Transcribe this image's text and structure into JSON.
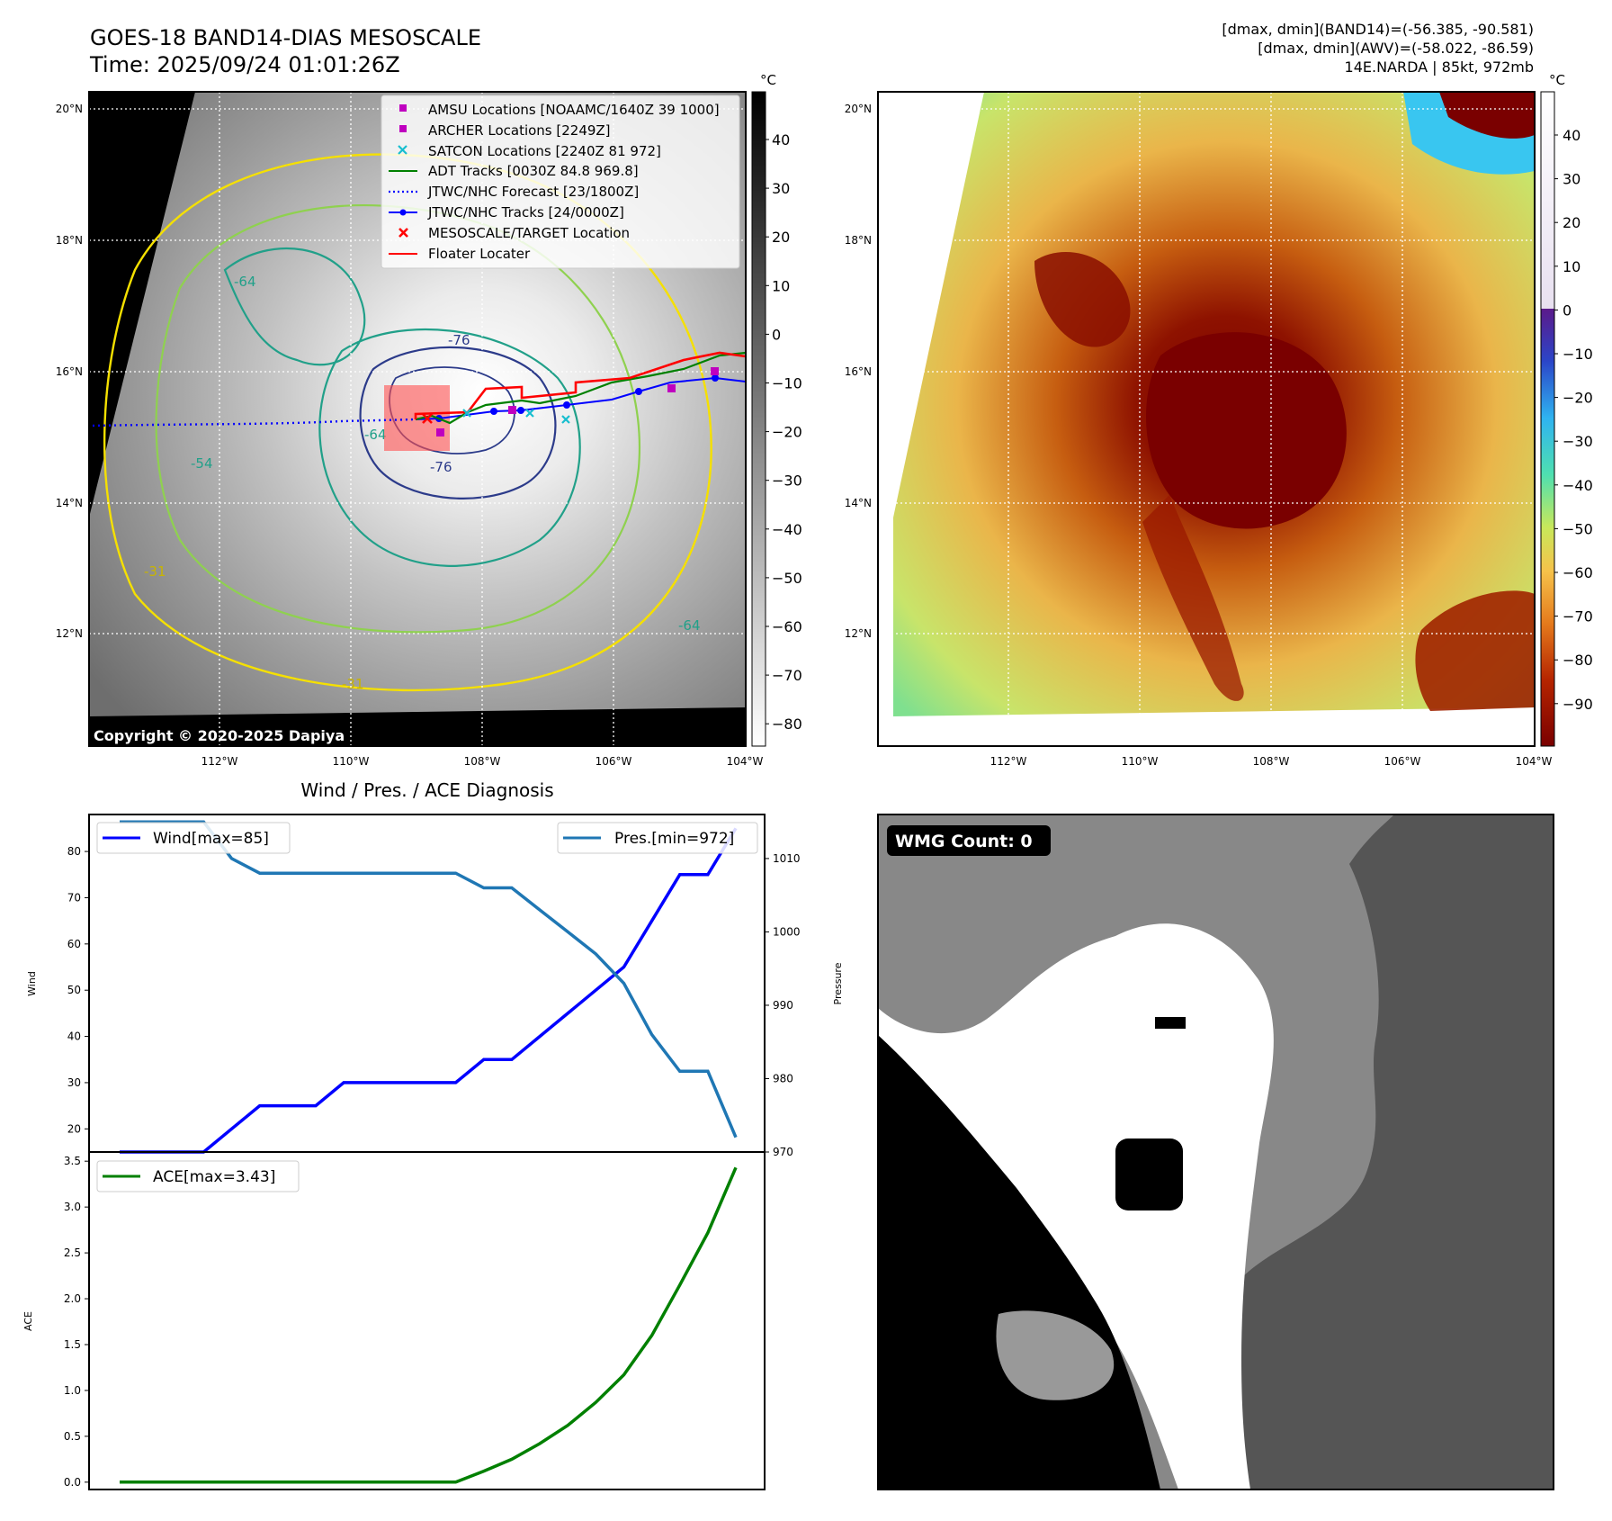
{
  "header": {
    "title_line1": "GOES-18 BAND14-DIAS MESOSCALE",
    "title_line2": "Time: 2025/09/24 01:01:26Z",
    "info_line1": "[dmax, dmin](BAND14)=(-56.385, -90.581)",
    "info_line2": "[dmax, dmin](AWV)=(-58.022, -86.59)",
    "info_line3": "14E.NARDA | 85kt, 972mb"
  },
  "copyright": "Copyright © 2020-2025 Dapiya",
  "map_axes": {
    "lat_labels": [
      "20°N",
      "18°N",
      "16°N",
      "14°N",
      "12°N"
    ],
    "lon_labels": [
      "112°W",
      "110°W",
      "108°W",
      "106°W",
      "104°W"
    ]
  },
  "ir_colorbar": {
    "unit": "°C",
    "ticks": [
      "40",
      "30",
      "20",
      "10",
      "0",
      "−10",
      "−20",
      "−30",
      "−40",
      "−50",
      "−60",
      "−70",
      "−80"
    ]
  },
  "awv_colorbar": {
    "unit": "°C",
    "ticks": [
      "40",
      "30",
      "20",
      "10",
      "0",
      "−10",
      "−20",
      "−30",
      "−40",
      "−50",
      "−60",
      "−70",
      "−80",
      "−90"
    ]
  },
  "legend": [
    {
      "label": "AMSU Locations [NOAAMC/1640Z 39 1000]",
      "marker": "square",
      "color": "#bf00bf"
    },
    {
      "label": "ARCHER Locations [2249Z]",
      "marker": "square",
      "color": "#bf00bf"
    },
    {
      "label": "SATCON Locations [2240Z 81 972]",
      "marker": "x",
      "color": "#17becf"
    },
    {
      "label": "ADT Tracks [0030Z 84.8 969.8]",
      "marker": "line",
      "color": "#008000"
    },
    {
      "label": "JTWC/NHC Forecast [23/1800Z]",
      "marker": "dotted",
      "color": "#0000ff"
    },
    {
      "label": "JTWC/NHC Tracks [24/0000Z]",
      "marker": "line-dot",
      "color": "#0000ff"
    },
    {
      "label": "MESOSCALE/TARGET Location",
      "marker": "x",
      "color": "#ff0000"
    },
    {
      "label": "Floater Locater",
      "marker": "line",
      "color": "#ff0000"
    }
  ],
  "contour_labels": [
    "-64",
    "-76",
    "-76",
    "-64",
    "-54",
    "-31",
    "-31",
    "-64"
  ],
  "wmg": {
    "label": "WMG Count: 0"
  },
  "chart_data": [
    {
      "type": "line",
      "title": "Wind / Pres. / ACE Diagnosis",
      "ylabel": "Wind",
      "y2label": "Pressure",
      "ylim": [
        15,
        88
      ],
      "y2lim": [
        970,
        1016
      ],
      "yticks": [
        20,
        30,
        40,
        50,
        60,
        70,
        80
      ],
      "y2ticks": [
        970,
        980,
        990,
        1000,
        1010
      ],
      "series": [
        {
          "name": "Wind[max=85]",
          "axis": "left",
          "color": "#0000ff",
          "values": [
            15,
            15,
            15,
            15,
            20,
            25,
            25,
            25,
            30,
            30,
            30,
            30,
            30,
            35,
            35,
            40,
            45,
            50,
            55,
            65,
            75,
            75,
            85
          ]
        },
        {
          "name": "Pres.[min=972]",
          "axis": "right",
          "color": "#1f77b4",
          "values": [
            1015,
            1015,
            1015,
            1015,
            1010,
            1008,
            1008,
            1008,
            1008,
            1008,
            1008,
            1008,
            1008,
            1006,
            1006,
            1003,
            1000,
            997,
            993,
            986,
            981,
            981,
            972
          ]
        }
      ]
    },
    {
      "type": "line",
      "ylabel": "ACE",
      "ylim": [
        -0.08,
        3.6
      ],
      "yticks": [
        "0.0",
        "0.5",
        "1.0",
        "1.5",
        "2.0",
        "2.5",
        "3.0",
        "3.5"
      ],
      "series": [
        {
          "name": "ACE[max=3.43]",
          "color": "#008000",
          "values": [
            0,
            0,
            0,
            0,
            0,
            0,
            0,
            0,
            0,
            0,
            0,
            0,
            0,
            0.12,
            0.25,
            0.42,
            0.62,
            0.87,
            1.17,
            1.6,
            2.15,
            2.72,
            3.43
          ]
        }
      ]
    }
  ]
}
